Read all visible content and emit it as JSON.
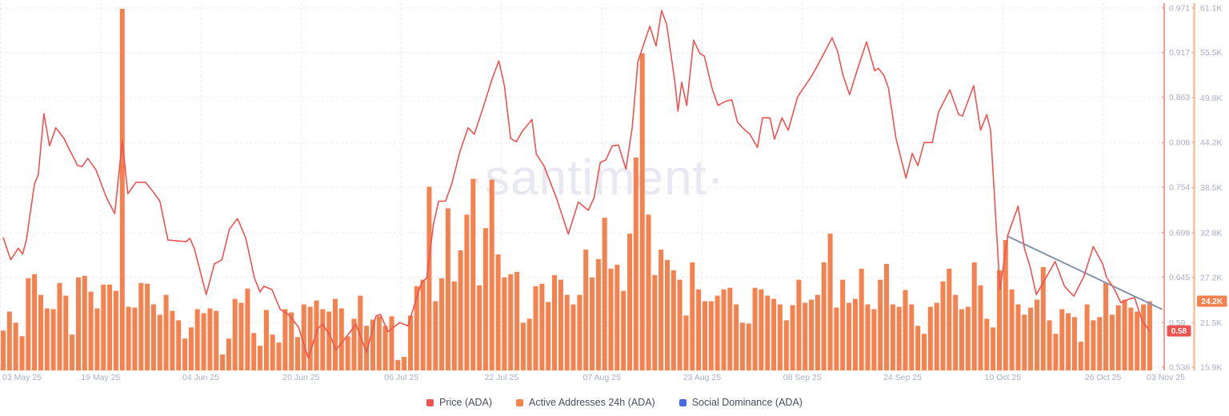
{
  "watermark": "·santiment·",
  "legend": {
    "items": [
      {
        "label": "Price (ADA)",
        "color": "#ef5350"
      },
      {
        "label": "Active Addresses 24h (ADA)",
        "color": "#f4814e"
      },
      {
        "label": "Social Dominance (ADA)",
        "color": "#4669e8"
      }
    ]
  },
  "chart_data": {
    "type": "mixed",
    "title": "",
    "x_axis": {
      "days_total": 184,
      "ticks": [
        {
          "label": "03 May 25",
          "day": 0
        },
        {
          "label": "19 May 25",
          "day": 16
        },
        {
          "label": "04 Jun 25",
          "day": 32
        },
        {
          "label": "20 Jun 25",
          "day": 48
        },
        {
          "label": "06 Jul 25",
          "day": 64
        },
        {
          "label": "22 Jul 25",
          "day": 80
        },
        {
          "label": "07 Aug 25",
          "day": 96
        },
        {
          "label": "23 Aug 25",
          "day": 112
        },
        {
          "label": "08 Sep 25",
          "day": 128
        },
        {
          "label": "24 Sep 25",
          "day": 144
        },
        {
          "label": "10 Oct 25",
          "day": 160
        },
        {
          "label": "26 Oct 25",
          "day": 176
        },
        {
          "label": "03 Nov 25",
          "day": 184
        }
      ]
    },
    "price_axis": {
      "ticks": [
        "0.971",
        "0.917",
        "0.863",
        "0.808",
        "0.754",
        "0.699",
        "0.645",
        "0.59",
        "0.536"
      ],
      "max": 0.971,
      "min": 0.536,
      "current_label": "0.58",
      "current_value": 0.58,
      "color": "#ef5350",
      "line_color": "#f59b93",
      "label_color": "#a8aec8"
    },
    "addresses_axis": {
      "ticks": [
        "61.1K",
        "55.5K",
        "49.8K",
        "44.2K",
        "38.5K",
        "32.8K",
        "27.2K",
        "21.5K",
        "15.9K"
      ],
      "max": 61.1,
      "min": 15.9,
      "current_label": "24.2K",
      "current_value": 24.2,
      "color": "#f4814e",
      "line_color": "#f7b186",
      "label_color": "#a8aec8"
    },
    "series": [
      {
        "name": "Price (ADA)",
        "type": "line",
        "axis": "price",
        "color": "#ef5350",
        "visible": true,
        "points": [
          [
            0,
            0.693
          ],
          [
            1.2,
            0.666
          ],
          [
            2.4,
            0.68
          ],
          [
            3.1,
            0.673
          ],
          [
            3.7,
            0.69
          ],
          [
            5.0,
            0.758
          ],
          [
            5.6,
            0.769
          ],
          [
            6.5,
            0.843
          ],
          [
            7.4,
            0.804
          ],
          [
            8.4,
            0.826
          ],
          [
            9.7,
            0.813
          ],
          [
            10.6,
            0.799
          ],
          [
            11.9,
            0.78
          ],
          [
            12.6,
            0.779
          ],
          [
            13.5,
            0.789
          ],
          [
            14.8,
            0.775
          ],
          [
            16.5,
            0.741
          ],
          [
            17.8,
            0.722
          ],
          [
            19.0,
            0.81
          ],
          [
            19.9,
            0.746
          ],
          [
            21.2,
            0.76
          ],
          [
            22.7,
            0.76
          ],
          [
            24.0,
            0.748
          ],
          [
            25.0,
            0.737
          ],
          [
            26.3,
            0.69
          ],
          [
            29.2,
            0.688
          ],
          [
            29.8,
            0.692
          ],
          [
            30.5,
            0.68
          ],
          [
            32.4,
            0.624
          ],
          [
            33.7,
            0.661
          ],
          [
            34.9,
            0.666
          ],
          [
            36.1,
            0.703
          ],
          [
            37.4,
            0.716
          ],
          [
            38.7,
            0.693
          ],
          [
            40.1,
            0.644
          ],
          [
            41.0,
            0.627
          ],
          [
            41.6,
            0.634
          ],
          [
            42.9,
            0.63
          ],
          [
            44.2,
            0.606
          ],
          [
            45.5,
            0.6
          ],
          [
            47.1,
            0.585
          ],
          [
            48.7,
            0.547
          ],
          [
            50.2,
            0.583
          ],
          [
            51.0,
            0.588
          ],
          [
            52.2,
            0.574
          ],
          [
            53.1,
            0.557
          ],
          [
            54.4,
            0.569
          ],
          [
            56.3,
            0.588
          ],
          [
            58.0,
            0.554
          ],
          [
            59.5,
            0.598
          ],
          [
            60.2,
            0.6
          ],
          [
            61.4,
            0.579
          ],
          [
            63.3,
            0.59
          ],
          [
            64.6,
            0.586
          ],
          [
            66.8,
            0.639
          ],
          [
            67.6,
            0.644
          ],
          [
            68.7,
            0.71
          ],
          [
            69.5,
            0.737
          ],
          [
            70.6,
            0.737
          ],
          [
            71.6,
            0.758
          ],
          [
            72.9,
            0.797
          ],
          [
            74.2,
            0.826
          ],
          [
            75.2,
            0.818
          ],
          [
            76.8,
            0.855
          ],
          [
            78.0,
            0.884
          ],
          [
            79.1,
            0.907
          ],
          [
            80.0,
            0.877
          ],
          [
            81.0,
            0.813
          ],
          [
            81.9,
            0.809
          ],
          [
            82.8,
            0.821
          ],
          [
            84.4,
            0.836
          ],
          [
            85.1,
            0.794
          ],
          [
            86.3,
            0.78
          ],
          [
            88.3,
            0.741
          ],
          [
            90.2,
            0.697
          ],
          [
            91.8,
            0.736
          ],
          [
            93.4,
            0.726
          ],
          [
            94.3,
            0.741
          ],
          [
            95.3,
            0.784
          ],
          [
            96.2,
            0.787
          ],
          [
            97.2,
            0.804
          ],
          [
            98.2,
            0.805
          ],
          [
            99.4,
            0.776
          ],
          [
            100.4,
            0.826
          ],
          [
            101.3,
            0.906
          ],
          [
            103.2,
            0.949
          ],
          [
            104.2,
            0.925
          ],
          [
            105.1,
            0.968
          ],
          [
            105.9,
            0.951
          ],
          [
            107.2,
            0.882
          ],
          [
            107.7,
            0.846
          ],
          [
            108.3,
            0.881
          ],
          [
            109.1,
            0.853
          ],
          [
            110.2,
            0.932
          ],
          [
            111.2,
            0.916
          ],
          [
            111.9,
            0.913
          ],
          [
            113.2,
            0.872
          ],
          [
            114.1,
            0.853
          ],
          [
            115.3,
            0.858
          ],
          [
            116.3,
            0.86
          ],
          [
            117.2,
            0.833
          ],
          [
            118.0,
            0.826
          ],
          [
            119.2,
            0.818
          ],
          [
            120.4,
            0.802
          ],
          [
            121.2,
            0.838
          ],
          [
            122.4,
            0.838
          ],
          [
            123.1,
            0.812
          ],
          [
            124.3,
            0.838
          ],
          [
            125.3,
            0.823
          ],
          [
            126.8,
            0.863
          ],
          [
            127.2,
            0.868
          ],
          [
            128.9,
            0.887
          ],
          [
            130.1,
            0.903
          ],
          [
            132.3,
            0.935
          ],
          [
            133.2,
            0.918
          ],
          [
            134.0,
            0.891
          ],
          [
            135.1,
            0.866
          ],
          [
            136.1,
            0.891
          ],
          [
            137.8,
            0.93
          ],
          [
            138.7,
            0.906
          ],
          [
            139.1,
            0.895
          ],
          [
            139.7,
            0.898
          ],
          [
            140.6,
            0.889
          ],
          [
            141.3,
            0.874
          ],
          [
            142.5,
            0.813
          ],
          [
            144.1,
            0.765
          ],
          [
            145.1,
            0.795
          ],
          [
            146.0,
            0.78
          ],
          [
            147.0,
            0.808
          ],
          [
            148.3,
            0.808
          ],
          [
            149.3,
            0.845
          ],
          [
            151.1,
            0.872
          ],
          [
            152.5,
            0.842
          ],
          [
            153.1,
            0.84
          ],
          [
            154.9,
            0.877
          ],
          [
            156.0,
            0.823
          ],
          [
            157.0,
            0.842
          ],
          [
            157.6,
            0.823
          ],
          [
            159.1,
            0.63
          ],
          [
            160.4,
            0.697
          ],
          [
            162.0,
            0.731
          ],
          [
            163.0,
            0.68
          ],
          [
            163.9,
            0.658
          ],
          [
            164.9,
            0.624
          ],
          [
            167.9,
            0.664
          ],
          [
            169.4,
            0.634
          ],
          [
            170.9,
            0.622
          ],
          [
            172.5,
            0.646
          ],
          [
            174.0,
            0.682
          ],
          [
            175.5,
            0.661
          ],
          [
            176.1,
            0.645
          ],
          [
            177.4,
            0.63
          ],
          [
            178.4,
            0.614
          ],
          [
            179.9,
            0.619
          ],
          [
            180.6,
            0.62
          ],
          [
            181.2,
            0.606
          ],
          [
            181.8,
            0.592
          ],
          [
            183,
            0.58
          ]
        ]
      },
      {
        "name": "Active Addresses 24h (ADA)",
        "type": "bar",
        "axis": "addresses",
        "color": "#f4814e",
        "visible": true,
        "values": [
          20.5,
          22.9,
          21.5,
          19.8,
          27.1,
          27.6,
          25.0,
          23.3,
          23.2,
          26.5,
          24.9,
          20.0,
          27.2,
          27.4,
          25.4,
          23.3,
          26.3,
          26.3,
          25.5,
          61.0,
          23.5,
          23.4,
          26.5,
          26.4,
          23.8,
          22.5,
          25.0,
          23.0,
          21.8,
          19.5,
          20.9,
          23.2,
          22.7,
          23.3,
          23.0,
          17.5,
          19.5,
          24.5,
          24.0,
          25.8,
          20.2,
          18.6,
          23.1,
          20.0,
          19.0,
          23.2,
          22.8,
          19.7,
          23.8,
          23.5,
          24.3,
          23.2,
          22.9,
          24.5,
          23.3,
          19.8,
          22.0,
          24.9,
          21.1,
          21.9,
          22.3,
          21.1,
          22.3,
          16.8,
          17.2,
          22.4,
          26.1,
          26.9,
          38.6,
          24.2,
          27.1,
          35.9,
          26.7,
          30.6,
          35.1,
          39.6,
          26.2,
          33.4,
          39.5,
          30.1,
          27.2,
          27.6,
          27.9,
          21.5,
          22.0,
          26.1,
          26.4,
          24.1,
          27.5,
          26.9,
          25.0,
          23.8,
          25.0,
          30.7,
          27.2,
          29.5,
          34.7,
          28.3,
          28.8,
          25.5,
          32.7,
          42.3,
          55.4,
          35.1,
          27.5,
          30.7,
          29.4,
          28.1,
          26.9,
          22.4,
          29.1,
          25.7,
          24.2,
          24.2,
          24.9,
          25.7,
          25.9,
          23.8,
          21.5,
          21.4,
          25.9,
          25.7,
          24.9,
          24.5,
          23.8,
          21.8,
          23.7,
          26.9,
          24.0,
          24.4,
          25.0,
          29.1,
          32.7,
          23.4,
          26.9,
          24.0,
          24.5,
          28.3,
          23.8,
          23.2,
          26.9,
          28.9,
          23.8,
          23.5,
          25.6,
          23.8,
          21.1,
          20.1,
          23.5,
          24.0,
          26.7,
          28.3,
          25.0,
          23.2,
          23.5,
          29.1,
          26.2,
          22.0,
          20.9,
          28.1,
          31.9,
          25.7,
          23.8,
          22.5,
          23.4,
          24.4,
          28.5,
          21.8,
          20.1,
          23.2,
          22.7,
          22.2,
          19.1,
          23.8,
          21.8,
          22.2,
          26.5,
          22.5,
          23.7,
          24.4,
          23.4,
          22.9,
          23.8,
          24.2
        ]
      },
      {
        "name": "Social Dominance (ADA)",
        "type": "line",
        "axis": "none",
        "color": "#4669e8",
        "visible": false,
        "points": []
      }
    ],
    "annotations": {
      "trendline": {
        "from": [
          160.2,
          0.695
        ],
        "to": [
          185.0,
          0.606
        ],
        "color": "#8494ae"
      }
    },
    "grid": {
      "color": "#eaebf1",
      "dash": "3,3"
    }
  }
}
